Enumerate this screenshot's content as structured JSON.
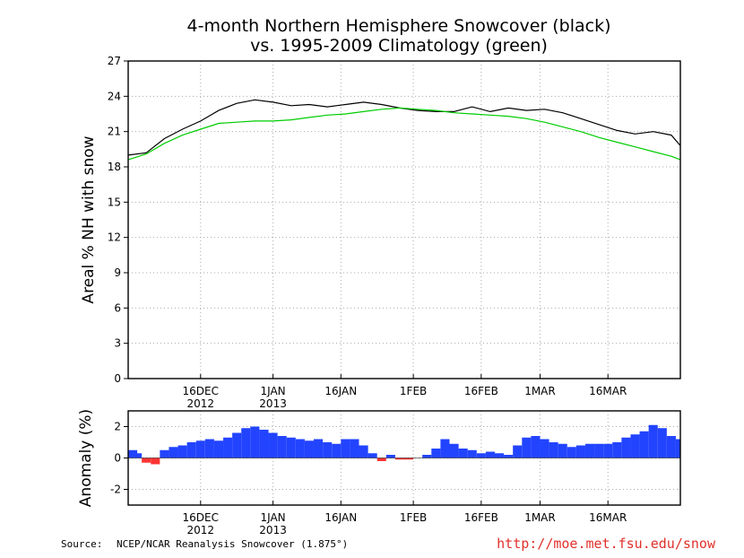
{
  "chart_data": [
    {
      "type": "line",
      "title": "4-month Northern Hemisphere Snowcover (black)",
      "subtitle": "vs. 1995-2009 Climatology (green)",
      "ylabel": "Areal % NH with snow",
      "xlabel": "",
      "ylim": [
        0,
        27
      ],
      "yticks": [
        "0",
        "3",
        "6",
        "9",
        "12",
        "15",
        "18",
        "21",
        "24",
        "27"
      ],
      "xlim": [
        "2012-11-30",
        "2013-04-01"
      ],
      "xticks": [
        {
          "date": "2012-12-16",
          "label": "16DEC",
          "sublabel": "2012"
        },
        {
          "date": "2013-01-01",
          "label": "1JAN",
          "sublabel": "2013"
        },
        {
          "date": "2013-01-16",
          "label": "16JAN",
          "sublabel": ""
        },
        {
          "date": "2013-02-01",
          "label": "1FEB",
          "sublabel": ""
        },
        {
          "date": "2013-02-16",
          "label": "16FEB",
          "sublabel": ""
        },
        {
          "date": "2013-03-01",
          "label": "1MAR",
          "sublabel": ""
        },
        {
          "date": "2013-03-16",
          "label": "16MAR",
          "sublabel": ""
        }
      ],
      "grid": true,
      "series": [
        {
          "color": "#000000",
          "x": [
            "2012-11-30",
            "2012-12-04",
            "2012-12-08",
            "2012-12-12",
            "2012-12-16",
            "2012-12-20",
            "2012-12-24",
            "2012-12-28",
            "2013-01-01",
            "2013-01-05",
            "2013-01-09",
            "2013-01-13",
            "2013-01-17",
            "2013-01-21",
            "2013-01-25",
            "2013-01-29",
            "2013-02-02",
            "2013-02-06",
            "2013-02-10",
            "2013-02-14",
            "2013-02-18",
            "2013-02-22",
            "2013-02-26",
            "2013-03-02",
            "2013-03-06",
            "2013-03-10",
            "2013-03-14",
            "2013-03-18",
            "2013-03-22",
            "2013-03-26",
            "2013-03-30",
            "2013-04-01"
          ],
          "values": [
            19.0,
            19.2,
            20.4,
            21.2,
            21.9,
            22.8,
            23.4,
            23.7,
            23.5,
            23.2,
            23.3,
            23.1,
            23.3,
            23.5,
            23.3,
            23.0,
            22.8,
            22.7,
            22.7,
            23.1,
            22.7,
            23.0,
            22.8,
            22.9,
            22.6,
            22.1,
            21.6,
            21.1,
            20.8,
            21.0,
            20.7,
            19.8
          ]
        },
        {
          "color": "#00cc00",
          "x": [
            "2012-11-30",
            "2012-12-04",
            "2012-12-08",
            "2012-12-12",
            "2012-12-16",
            "2012-12-20",
            "2012-12-24",
            "2012-12-28",
            "2013-01-01",
            "2013-01-05",
            "2013-01-09",
            "2013-01-13",
            "2013-01-17",
            "2013-01-21",
            "2013-01-25",
            "2013-01-29",
            "2013-02-02",
            "2013-02-06",
            "2013-02-10",
            "2013-02-14",
            "2013-02-18",
            "2013-02-22",
            "2013-02-26",
            "2013-03-02",
            "2013-03-06",
            "2013-03-10",
            "2013-03-14",
            "2013-03-18",
            "2013-03-22",
            "2013-03-26",
            "2013-03-30",
            "2013-04-01"
          ],
          "values": [
            18.6,
            19.1,
            20.0,
            20.7,
            21.2,
            21.7,
            21.8,
            21.9,
            21.9,
            22.0,
            22.2,
            22.4,
            22.5,
            22.7,
            22.9,
            23.0,
            22.9,
            22.8,
            22.6,
            22.5,
            22.4,
            22.3,
            22.1,
            21.8,
            21.4,
            21.0,
            20.5,
            20.1,
            19.7,
            19.3,
            18.9,
            18.6
          ]
        }
      ]
    },
    {
      "type": "bar",
      "ylabel": "Anomaly (%)",
      "xlabel": "",
      "ylim": [
        -3,
        3
      ],
      "yticks": [
        "-2",
        "0",
        "2"
      ],
      "xlim": [
        "2012-11-30",
        "2013-04-01"
      ],
      "xticks": [
        {
          "date": "2012-12-16",
          "label": "16DEC",
          "sublabel": "2012"
        },
        {
          "date": "2013-01-01",
          "label": "1JAN",
          "sublabel": "2013"
        },
        {
          "date": "2013-01-16",
          "label": "16JAN",
          "sublabel": ""
        },
        {
          "date": "2013-02-01",
          "label": "1FEB",
          "sublabel": ""
        },
        {
          "date": "2013-02-16",
          "label": "16FEB",
          "sublabel": ""
        },
        {
          "date": "2013-03-01",
          "label": "1MAR",
          "sublabel": ""
        },
        {
          "date": "2013-03-16",
          "label": "16MAR",
          "sublabel": ""
        }
      ],
      "grid": true,
      "positive_color": "#2244ff",
      "negative_color": "#ff3333",
      "series": [
        {
          "x": [
            "2012-11-30",
            "2012-12-02",
            "2012-12-04",
            "2012-12-06",
            "2012-12-08",
            "2012-12-10",
            "2012-12-12",
            "2012-12-14",
            "2012-12-16",
            "2012-12-18",
            "2012-12-20",
            "2012-12-22",
            "2012-12-24",
            "2012-12-26",
            "2012-12-28",
            "2012-12-30",
            "2013-01-01",
            "2013-01-03",
            "2013-01-05",
            "2013-01-07",
            "2013-01-09",
            "2013-01-11",
            "2013-01-13",
            "2013-01-15",
            "2013-01-17",
            "2013-01-19",
            "2013-01-21",
            "2013-01-23",
            "2013-01-25",
            "2013-01-27",
            "2013-01-29",
            "2013-01-31",
            "2013-02-02",
            "2013-02-04",
            "2013-02-06",
            "2013-02-08",
            "2013-02-10",
            "2013-02-12",
            "2013-02-14",
            "2013-02-16",
            "2013-02-18",
            "2013-02-20",
            "2013-02-22",
            "2013-02-24",
            "2013-02-26",
            "2013-02-28",
            "2013-03-02",
            "2013-03-04",
            "2013-03-06",
            "2013-03-08",
            "2013-03-10",
            "2013-03-12",
            "2013-03-14",
            "2013-03-16",
            "2013-03-18",
            "2013-03-20",
            "2013-03-22",
            "2013-03-24",
            "2013-03-26",
            "2013-03-28",
            "2013-03-30",
            "2013-04-01"
          ],
          "values": [
            0.5,
            0.3,
            -0.3,
            -0.4,
            0.5,
            0.7,
            0.8,
            1.0,
            1.1,
            1.2,
            1.1,
            1.3,
            1.6,
            1.9,
            2.0,
            1.8,
            1.6,
            1.4,
            1.3,
            1.2,
            1.1,
            1.2,
            1.0,
            0.9,
            1.2,
            1.2,
            0.8,
            0.3,
            -0.2,
            0.2,
            -0.1,
            -0.1,
            0.0,
            0.2,
            0.6,
            1.2,
            0.9,
            0.6,
            0.5,
            0.3,
            0.4,
            0.3,
            0.2,
            0.8,
            1.3,
            1.4,
            1.2,
            1.0,
            0.9,
            0.7,
            0.8,
            0.9,
            0.9,
            0.9,
            1.0,
            1.3,
            1.5,
            1.7,
            2.1,
            1.9,
            1.4,
            1.2
          ]
        }
      ]
    }
  ],
  "footer": {
    "source_label": "Source:",
    "source_text": "NCEP/NCAR Reanalysis Snowcover (1.875°)",
    "url": "http://moe.met.fsu.edu/snow"
  }
}
